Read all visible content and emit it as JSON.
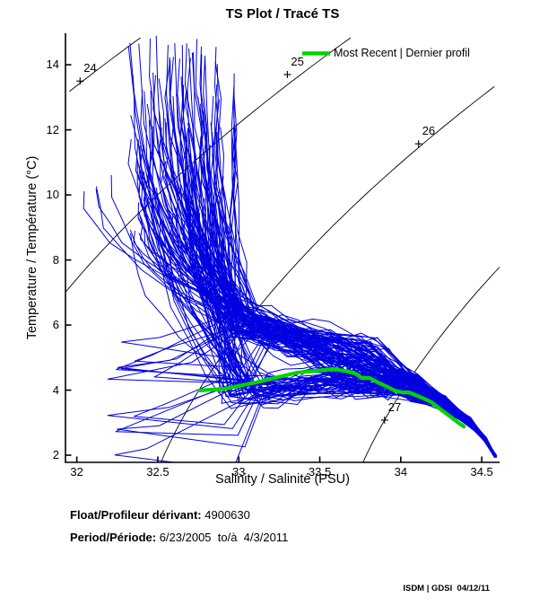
{
  "chart_data": {
    "type": "line",
    "title": "TS Plot / Tracé TS",
    "xlabel": "Salinity / Salinité (PSU)",
    "ylabel": "Temperature / Température (°C)",
    "xlim": [
      31.93,
      34.61
    ],
    "ylim": [
      1.78,
      14.97
    ],
    "grid": false,
    "xticks": [
      32,
      32.5,
      33,
      33.5,
      34,
      34.5
    ],
    "xtick_labels": [
      "32",
      "32.5",
      "33",
      "33.5",
      "34",
      "34.5"
    ],
    "yticks": [
      2,
      4,
      6,
      8,
      10,
      12,
      14
    ],
    "ytick_labels": [
      "2",
      "4",
      "6",
      "8",
      "10",
      "12",
      "14"
    ],
    "legend": {
      "label": "Most Recent | Dernier profil",
      "color": "#00d400",
      "position": "upper right"
    },
    "isopycnals": {
      "levels": [
        24,
        25,
        26,
        27
      ],
      "color": "#000000",
      "label_marker": "+",
      "labels": [
        {
          "level": "24",
          "S": 32.02,
          "T": 13.5
        },
        {
          "level": "25",
          "S": 33.3,
          "T": 13.7
        },
        {
          "level": "26",
          "S": 34.11,
          "T": 11.57
        },
        {
          "level": "27",
          "S": 33.9,
          "T": 3.08
        }
      ]
    },
    "most_recent_profile": {
      "color": "#00d400",
      "points_ST": [
        [
          32.76,
          3.99
        ],
        [
          32.91,
          4.04
        ],
        [
          33.02,
          4.15
        ],
        [
          33.13,
          4.26
        ],
        [
          33.24,
          4.4
        ],
        [
          33.36,
          4.54
        ],
        [
          33.47,
          4.59
        ],
        [
          33.58,
          4.65
        ],
        [
          33.66,
          4.59
        ],
        [
          33.72,
          4.51
        ],
        [
          33.76,
          4.37
        ],
        [
          33.81,
          4.37
        ],
        [
          33.86,
          4.23
        ],
        [
          33.91,
          4.12
        ],
        [
          33.96,
          3.99
        ],
        [
          34.01,
          3.93
        ],
        [
          34.05,
          3.93
        ],
        [
          34.09,
          3.85
        ],
        [
          34.13,
          3.77
        ],
        [
          34.19,
          3.63
        ],
        [
          34.24,
          3.43
        ],
        [
          34.3,
          3.21
        ],
        [
          34.35,
          3.02
        ],
        [
          34.39,
          2.88
        ]
      ]
    },
    "profiles_ensemble": {
      "description": "Approximately 150 blue T-S profiles from repeated float cycles 6/23/2005 - 4/3/2011",
      "count": 150,
      "seed": 20050623,
      "color": "#0000e0",
      "surface_S_range": [
        32.3,
        32.98
      ],
      "surface_T_range": [
        7.3,
        14.9
      ],
      "knee": {
        "S_range": [
          32.9,
          33.15
        ],
        "T_range": [
          3.4,
          6.6
        ]
      },
      "plateau_S_end_range": [
        33.7,
        33.92
      ],
      "left_outlier_S_min": 32.0,
      "deep_point_ST": [
        34.585,
        1.96
      ]
    }
  },
  "footer": {
    "float_label": "Float/Profileur dérivant:",
    "float_value": " 4900630",
    "period_label": "Period/Période:",
    "period_value": " 6/23/2005  to/à  4/3/2011",
    "watermark": "ISDM | GDSI  04/12/11"
  }
}
